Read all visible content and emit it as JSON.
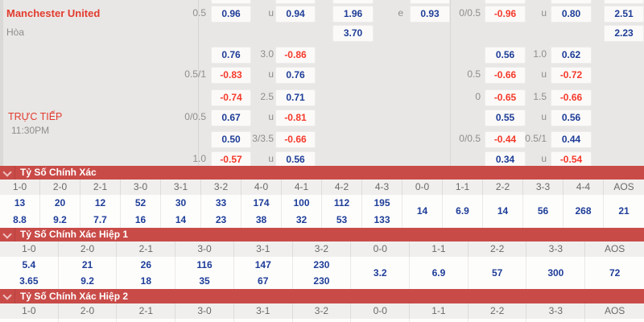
{
  "match": {
    "team": "Manchester United",
    "draw": "Hòa",
    "live_label": "TRỰC TIẾP",
    "time": "11:30PM"
  },
  "colors": {
    "accent_red": "#c94b48",
    "odds_positive_blue": "#1e3d98",
    "odds_negative_red": "#f5392b",
    "team_red": "#e23b2e",
    "panel_gray": "#e9e7e5"
  },
  "icons": {
    "section_toggle": "chevron-down-icon"
  },
  "odds_rows": [
    {
      "l1": "0.5",
      "o1": "0.96",
      "l2": "u",
      "o2": "0.94",
      "x12": "1.96",
      "e": "e",
      "ex": "0.93",
      "r1": "0/0.5",
      "ro1": "-0.96",
      "r2": "u",
      "ro2": "0.80",
      "far": "2.51"
    },
    {
      "x12": "3.70",
      "far": "2.23"
    },
    {
      "o1": "0.76",
      "l2": "3.0",
      "o2": "-0.86",
      "ro1": "0.56",
      "r2": "1.0",
      "ro2": "0.62"
    },
    {
      "l1": "0.5/1",
      "o1": "-0.83",
      "l2": "u",
      "o2": "0.76",
      "r1": "0.5",
      "ro1": "-0.66",
      "r2": "u",
      "ro2": "-0.72"
    },
    {
      "o1": "-0.74",
      "l2": "2.5",
      "o2": "0.71",
      "r1": "0",
      "ro1": "-0.65",
      "r2": "1.5",
      "ro2": "-0.66"
    },
    {
      "l1": "0/0.5",
      "o1": "0.67",
      "l2": "u",
      "o2": "-0.81",
      "ro1": "0.55",
      "r2": "u",
      "ro2": "0.56"
    },
    {
      "o1": "0.50",
      "l2": "3/3.5",
      "o2": "-0.66",
      "r1": "0/0.5",
      "ro1": "-0.44",
      "r2": "0.5/1",
      "ro2": "0.44"
    },
    {
      "l1": "1.0",
      "o1": "-0.57",
      "l2": "u",
      "o2": "0.56",
      "ro1": "0.34",
      "r2": "u",
      "ro2": "-0.54"
    }
  ],
  "score_tables": [
    {
      "title": "Tỷ Số Chính Xác",
      "cols": [
        {
          "h": "1-0",
          "v": [
            "13",
            "8.8"
          ]
        },
        {
          "h": "2-0",
          "v": [
            "20",
            "9.2"
          ]
        },
        {
          "h": "2-1",
          "v": [
            "12",
            "7.7"
          ]
        },
        {
          "h": "3-0",
          "v": [
            "52",
            "16"
          ]
        },
        {
          "h": "3-1",
          "v": [
            "30",
            "14"
          ]
        },
        {
          "h": "3-2",
          "v": [
            "33",
            "23"
          ]
        },
        {
          "h": "4-0",
          "v": [
            "174",
            "38"
          ]
        },
        {
          "h": "4-1",
          "v": [
            "100",
            "32"
          ]
        },
        {
          "h": "4-2",
          "v": [
            "112",
            "53"
          ]
        },
        {
          "h": "4-3",
          "v": [
            "195",
            "133"
          ]
        },
        {
          "h": "0-0",
          "v": [
            "14"
          ]
        },
        {
          "h": "1-1",
          "v": [
            "6.9"
          ]
        },
        {
          "h": "2-2",
          "v": [
            "14"
          ]
        },
        {
          "h": "3-3",
          "v": [
            "56"
          ]
        },
        {
          "h": "4-4",
          "v": [
            "268"
          ]
        },
        {
          "h": "AOS",
          "v": [
            "21"
          ]
        }
      ]
    },
    {
      "title": "Tỷ Số Chính Xác Hiệp 1",
      "cols": [
        {
          "h": "1-0",
          "v": [
            "5.4",
            "3.65"
          ]
        },
        {
          "h": "2-0",
          "v": [
            "21",
            "9.2"
          ]
        },
        {
          "h": "2-1",
          "v": [
            "26",
            "18"
          ]
        },
        {
          "h": "3-0",
          "v": [
            "116",
            "35"
          ]
        },
        {
          "h": "3-1",
          "v": [
            "147",
            "67"
          ]
        },
        {
          "h": "3-2",
          "v": [
            "230",
            "230"
          ]
        },
        {
          "h": "0-0",
          "v": [
            "3.2"
          ]
        },
        {
          "h": "1-1",
          "v": [
            "6.9"
          ]
        },
        {
          "h": "2-2",
          "v": [
            "57"
          ]
        },
        {
          "h": "3-3",
          "v": [
            "300"
          ]
        },
        {
          "h": "AOS",
          "v": [
            "72"
          ]
        }
      ]
    },
    {
      "title": "Tỷ Số Chính Xác Hiệp 2",
      "cols": [
        {
          "h": "1-0",
          "v": []
        },
        {
          "h": "2-0",
          "v": []
        },
        {
          "h": "2-1",
          "v": []
        },
        {
          "h": "3-0",
          "v": []
        },
        {
          "h": "3-1",
          "v": []
        },
        {
          "h": "3-2",
          "v": []
        },
        {
          "h": "0-0",
          "v": []
        },
        {
          "h": "1-1",
          "v": []
        },
        {
          "h": "2-2",
          "v": []
        },
        {
          "h": "3-3",
          "v": []
        },
        {
          "h": "AOS",
          "v": []
        }
      ]
    }
  ]
}
